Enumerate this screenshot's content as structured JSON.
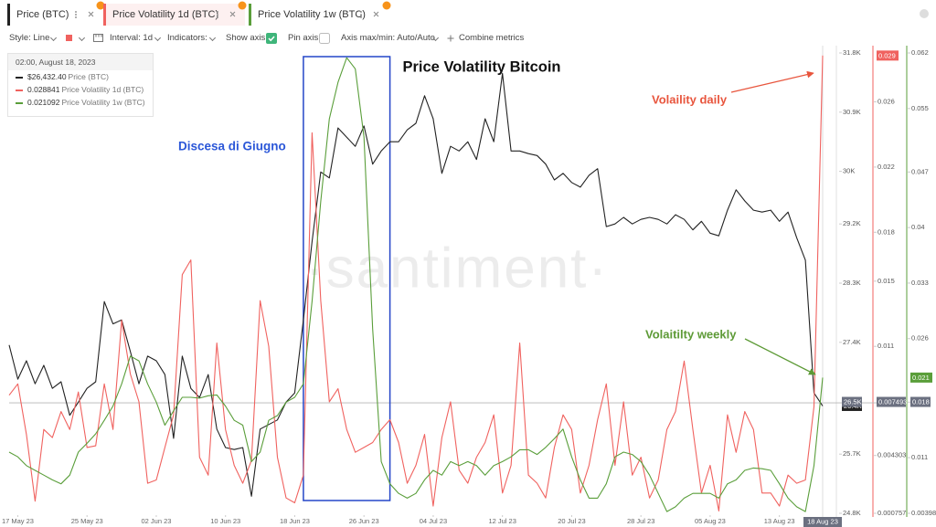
{
  "chart_data": {
    "type": "line",
    "title": "Price Volatility Bitcoin",
    "watermark": "·santiment·",
    "toolbar": [
      "Style: Line",
      "Interval: 1d",
      "Indicators:",
      "Show axis",
      "Pin axis",
      "Axis max/min: Auto/Auto",
      "Combine metrics"
    ],
    "tooltip": {
      "title": "02:00, August 18, 2023",
      "values": [
        "$26,432.40",
        "0.028841",
        "0.021092"
      ]
    },
    "annotations": {
      "daily": "Volaility daily",
      "weekly": "Volaitilty weekly"
    },
    "box": {
      "label": "Discesa di Giugno",
      "x": [
        "2023-06-19",
        "2023-06-29"
      ]
    },
    "crosshair": {
      "x": "2023-08-18",
      "x_label": "18 Aug 23",
      "y": 26480,
      "labels": [
        "26.5K",
        "0.007493",
        "0.018"
      ]
    },
    "x": [
      "2023-05-16",
      "2023-05-17",
      "2023-05-18",
      "2023-05-19",
      "2023-05-20",
      "2023-05-21",
      "2023-05-22",
      "2023-05-23",
      "2023-05-24",
      "2023-05-25",
      "2023-05-26",
      "2023-05-27",
      "2023-05-28",
      "2023-05-29",
      "2023-05-30",
      "2023-05-31",
      "2023-06-01",
      "2023-06-02",
      "2023-06-03",
      "2023-06-04",
      "2023-06-05",
      "2023-06-06",
      "2023-06-07",
      "2023-06-08",
      "2023-06-09",
      "2023-06-10",
      "2023-06-11",
      "2023-06-12",
      "2023-06-13",
      "2023-06-14",
      "2023-06-15",
      "2023-06-16",
      "2023-06-17",
      "2023-06-18",
      "2023-06-19",
      "2023-06-20",
      "2023-06-21",
      "2023-06-22",
      "2023-06-23",
      "2023-06-24",
      "2023-06-25",
      "2023-06-26",
      "2023-06-27",
      "2023-06-28",
      "2023-06-29",
      "2023-06-30",
      "2023-07-01",
      "2023-07-02",
      "2023-07-03",
      "2023-07-04",
      "2023-07-05",
      "2023-07-06",
      "2023-07-07",
      "2023-07-08",
      "2023-07-09",
      "2023-07-10",
      "2023-07-11",
      "2023-07-12",
      "2023-07-13",
      "2023-07-14",
      "2023-07-15",
      "2023-07-16",
      "2023-07-17",
      "2023-07-18",
      "2023-07-19",
      "2023-07-20",
      "2023-07-21",
      "2023-07-22",
      "2023-07-23",
      "2023-07-24",
      "2023-07-25",
      "2023-07-26",
      "2023-07-27",
      "2023-07-28",
      "2023-07-29",
      "2023-07-30",
      "2023-07-31",
      "2023-08-01",
      "2023-08-02",
      "2023-08-03",
      "2023-08-04",
      "2023-08-05",
      "2023-08-06",
      "2023-08-07",
      "2023-08-08",
      "2023-08-09",
      "2023-08-10",
      "2023-08-11",
      "2023-08-12",
      "2023-08-13",
      "2023-08-14",
      "2023-08-15",
      "2023-08-16",
      "2023-08-17",
      "2023-08-18"
    ],
    "xlim": [
      "2023-05-16",
      "2023-08-18"
    ],
    "xticks": [
      {
        "value": "2023-05-17",
        "label": "17 May 23"
      },
      {
        "value": "2023-05-25",
        "label": "25 May 23"
      },
      {
        "value": "2023-06-02",
        "label": "02 Jun 23"
      },
      {
        "value": "2023-06-10",
        "label": "10 Jun 23"
      },
      {
        "value": "2023-06-18",
        "label": "18 Jun 23"
      },
      {
        "value": "2023-06-26",
        "label": "26 Jun 23"
      },
      {
        "value": "2023-07-04",
        "label": "04 Jul 23"
      },
      {
        "value": "2023-07-12",
        "label": "12 Jul 23"
      },
      {
        "value": "2023-07-20",
        "label": "20 Jul 23"
      },
      {
        "value": "2023-07-28",
        "label": "28 Jul 23"
      },
      {
        "value": "2023-08-05",
        "label": "05 Aug 23"
      },
      {
        "value": "2023-08-13",
        "label": "13 Aug 23"
      }
    ],
    "ylim": [
      24800,
      31800
    ],
    "yticks": [
      {
        "value": 24800,
        "label": "24.8K"
      },
      {
        "value": 25700,
        "label": "25.7K"
      },
      {
        "value": 27400,
        "label": "27.4K"
      },
      {
        "value": 28300,
        "label": "28.3K"
      },
      {
        "value": 29200,
        "label": "29.2K"
      },
      {
        "value": 30000,
        "label": "30K"
      },
      {
        "value": 30900,
        "label": "30.9K"
      },
      {
        "value": 31800,
        "label": "31.8K"
      }
    ],
    "y2lim": [
      0.000757,
      0.029
    ],
    "y2ticks": [
      0.000757,
      0.004303,
      0.011,
      0.015,
      0.018,
      0.022,
      0.026
    ],
    "y3lim": [
      0.003987,
      0.062
    ],
    "y3ticks": [
      0.003987,
      0.011,
      0.018,
      0.026,
      0.033,
      0.04,
      0.047,
      0.055,
      0.062
    ],
    "series": [
      {
        "name": "Price (BTC)",
        "color": "#222222",
        "axis": "y",
        "last_label": "26.4K",
        "values": [
          27360,
          26840,
          27120,
          26770,
          27050,
          26700,
          26800,
          26290,
          26490,
          26700,
          26800,
          28020,
          27680,
          27740,
          27260,
          26770,
          27190,
          27120,
          26910,
          25940,
          27190,
          26700,
          26560,
          26910,
          26080,
          25800,
          25770,
          25800,
          25060,
          26080,
          26150,
          26220,
          26490,
          26630,
          27740,
          28930,
          29990,
          29900,
          30660,
          30520,
          30380,
          30690,
          30110,
          30310,
          30450,
          30450,
          30630,
          30730,
          31150,
          30800,
          29970,
          30380,
          30310,
          30450,
          30180,
          30800,
          30450,
          31490,
          30310,
          30310,
          30270,
          30240,
          30110,
          29870,
          29970,
          29830,
          29760,
          29940,
          30040,
          29160,
          29200,
          29300,
          29200,
          29270,
          29300,
          29270,
          29200,
          29340,
          29270,
          29110,
          29240,
          29060,
          29020,
          29410,
          29720,
          29550,
          29410,
          29380,
          29410,
          29240,
          29380,
          28990,
          28650,
          26630,
          26432.4
        ]
      },
      {
        "name": "Price Volatility 1d (BTC)",
        "color": "#f0625f",
        "axis": "y2",
        "last_label": "0.029",
        "values": [
          0.008,
          0.0087,
          0.0056,
          0.0015,
          0.0059,
          0.0054,
          0.007,
          0.0059,
          0.0082,
          0.0048,
          0.0049,
          0.0087,
          0.0059,
          0.0126,
          0.0093,
          0.0076,
          0.0026,
          0.0028,
          0.0048,
          0.0068,
          0.0154,
          0.0163,
          0.0042,
          0.0031,
          0.0112,
          0.0059,
          0.0037,
          0.0026,
          0.004,
          0.0138,
          0.011,
          0.0042,
          0.0017,
          0.0014,
          0.0031,
          0.0241,
          0.0138,
          0.0076,
          0.0084,
          0.0059,
          0.0045,
          0.0048,
          0.0051,
          0.0059,
          0.0065,
          0.0051,
          0.0026,
          0.0037,
          0.0056,
          0.0012,
          0.0054,
          0.0076,
          0.0034,
          0.0026,
          0.0042,
          0.0051,
          0.0068,
          0.002,
          0.0037,
          0.0112,
          0.0031,
          0.0026,
          0.0017,
          0.0048,
          0.0068,
          0.0059,
          0.002,
          0.0037,
          0.0065,
          0.0087,
          0.0037,
          0.0076,
          0.0031,
          0.0042,
          0.0017,
          0.0028,
          0.0059,
          0.007,
          0.0101,
          0.0059,
          0.002,
          0.0037,
          0.0009,
          0.0068,
          0.0045,
          0.007,
          0.0059,
          0.002,
          0.002,
          0.0012,
          0.0031,
          0.0026,
          0.0028,
          0.0073,
          0.028841
        ]
      },
      {
        "name": "Price Volatility 1w (BTC)",
        "color": "#5a9e3a",
        "axis": "y3",
        "last_label": "0.021",
        "values": [
          0.0117,
          0.0111,
          0.01,
          0.0094,
          0.0088,
          0.0082,
          0.0077,
          0.0088,
          0.0117,
          0.0128,
          0.014,
          0.0157,
          0.0175,
          0.0203,
          0.0238,
          0.0232,
          0.0203,
          0.018,
          0.0151,
          0.0169,
          0.0186,
          0.0186,
          0.0185,
          0.0188,
          0.0189,
          0.0175,
          0.0157,
          0.0151,
          0.0105,
          0.0117,
          0.0157,
          0.0163,
          0.018,
          0.0186,
          0.0203,
          0.0307,
          0.0433,
          0.0537,
          0.0583,
          0.0614,
          0.06,
          0.0514,
          0.0272,
          0.0105,
          0.0077,
          0.0065,
          0.0059,
          0.0065,
          0.0082,
          0.0094,
          0.0088,
          0.0105,
          0.01,
          0.0105,
          0.01,
          0.0088,
          0.01,
          0.0105,
          0.0111,
          0.012,
          0.012,
          0.0114,
          0.0123,
          0.0134,
          0.0146,
          0.0111,
          0.0082,
          0.0059,
          0.0059,
          0.0077,
          0.0111,
          0.0117,
          0.0114,
          0.0105,
          0.0088,
          0.0065,
          0.0042,
          0.0048,
          0.0059,
          0.0065,
          0.0065,
          0.0065,
          0.0059,
          0.0077,
          0.0082,
          0.0094,
          0.0097,
          0.0096,
          0.0094,
          0.0077,
          0.0059,
          0.0048,
          0.0042,
          0.01,
          0.021092
        ]
      }
    ]
  }
}
